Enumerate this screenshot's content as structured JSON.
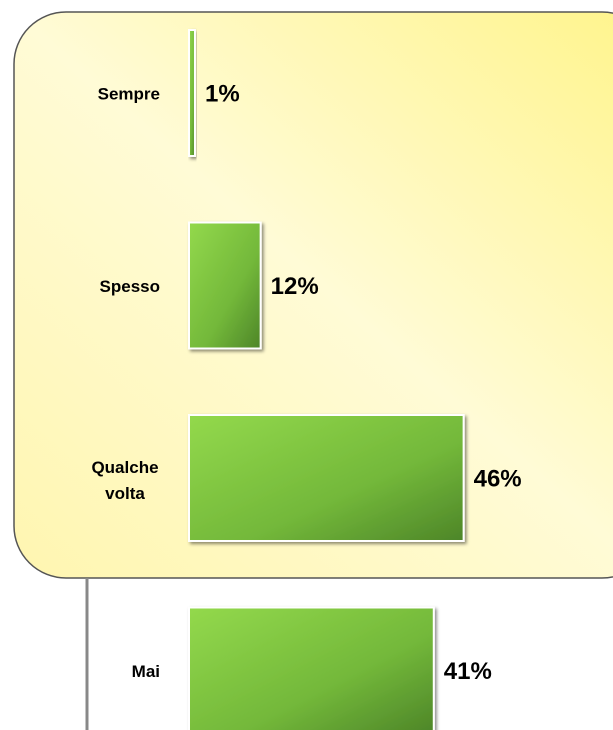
{
  "chart_data": {
    "type": "bar",
    "orientation": "horizontal",
    "categories": [
      "Sempre",
      "Spesso",
      "Qualche volta",
      "Mai"
    ],
    "values": [
      1,
      12,
      46,
      41
    ],
    "value_labels": [
      "1%",
      "12%",
      "46%",
      "41%"
    ],
    "color": "#6aae38"
  }
}
